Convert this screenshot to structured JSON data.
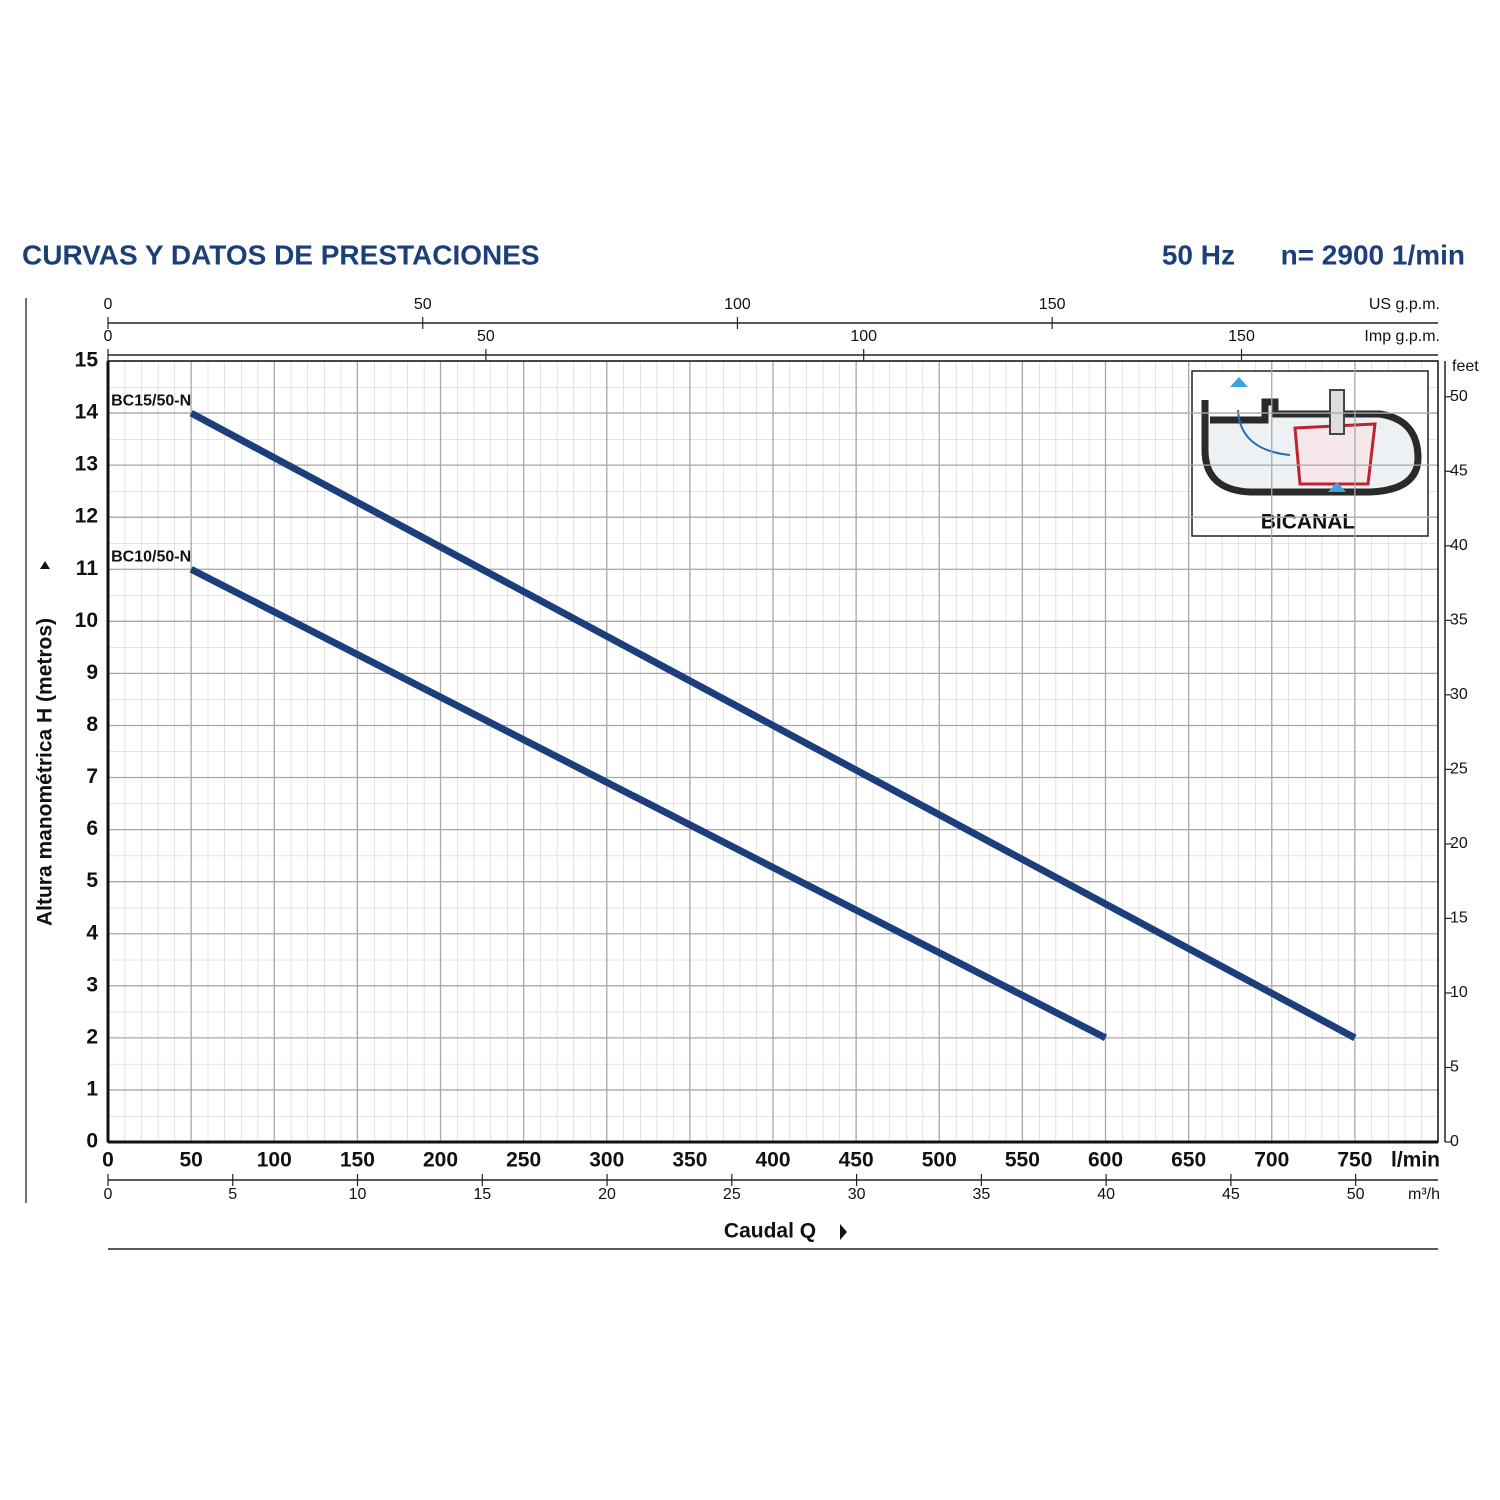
{
  "chart_data": {
    "type": "line",
    "title": "CURVAS Y DATOS DE PRESTACIONES",
    "frequency": "50 Hz",
    "speed": "n= 2900  1/min",
    "x_label": "Caudal Q",
    "y_label": "Altura manométrica H (metros)",
    "x_unit": "l/min",
    "xlim": [
      0,
      800
    ],
    "xticks": [
      0,
      50,
      100,
      150,
      200,
      250,
      300,
      350,
      400,
      450,
      500,
      550,
      600,
      650,
      700,
      750
    ],
    "ylim": [
      0,
      15
    ],
    "yticks": [
      0,
      1,
      2,
      3,
      4,
      5,
      6,
      7,
      8,
      9,
      10,
      11,
      12,
      13,
      14,
      15
    ],
    "grid": true,
    "series": [
      {
        "name": "BC15/50-N",
        "color": "#1d3e7c",
        "x": [
          50,
          750
        ],
        "values": [
          14,
          2
        ]
      },
      {
        "name": "BC10/50-N",
        "color": "#1d3e7c",
        "x": [
          50,
          600
        ],
        "values": [
          11,
          2
        ]
      }
    ],
    "secondary_axes": [
      {
        "label": "US g.p.m.",
        "position": "top",
        "lim": [
          0,
          211.3
        ],
        "ticks": [
          0,
          50,
          100,
          150
        ]
      },
      {
        "label": "Imp g.p.m.",
        "position": "top",
        "lim": [
          0,
          176
        ],
        "ticks": [
          0,
          50,
          100,
          150
        ]
      },
      {
        "label": "m³/h",
        "position": "bottom",
        "lim": [
          0,
          53.3
        ],
        "ticks": [
          0,
          5,
          10,
          15,
          20,
          25,
          30,
          35,
          40,
          45,
          50
        ]
      },
      {
        "label": "feet",
        "position": "right",
        "lim": [
          0,
          52.4
        ],
        "ticks": [
          0,
          5,
          10,
          15,
          20,
          25,
          30,
          35,
          40,
          45,
          50
        ]
      }
    ],
    "inset_label": "BICANAL"
  }
}
